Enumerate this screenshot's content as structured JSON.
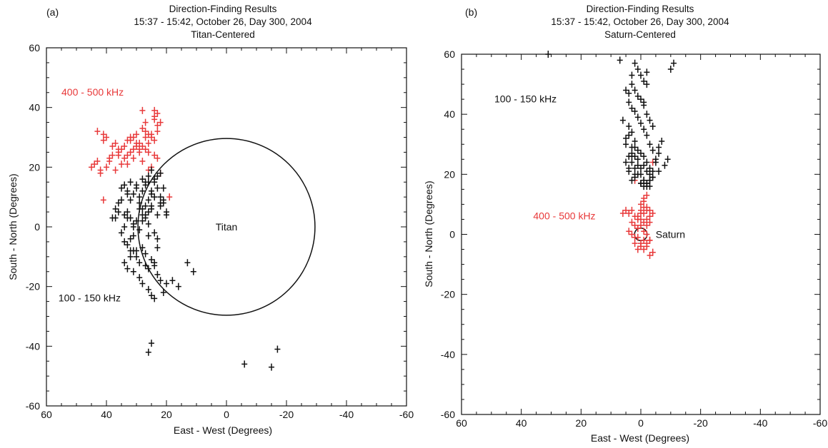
{
  "chart_data": [
    {
      "type": "scatter",
      "panel_label": "(a)",
      "title": "Direction-Finding Results",
      "subtitle": "15:37 - 15:42, October 26, Day 300, 2004",
      "subtitle2": "Titan-Centered",
      "xlabel": "East - West (Degrees)",
      "ylabel": "South - North (Degrees)",
      "xlim": [
        60,
        -60
      ],
      "ylim": [
        -60,
        60
      ],
      "xticks": [
        "60",
        "40",
        "20",
        "0",
        "-20",
        "-40",
        "-60"
      ],
      "yticks": [
        "-60",
        "-40",
        "-20",
        "0",
        "20",
        "40",
        "60"
      ],
      "body": {
        "name": "Titan",
        "center": [
          0,
          0
        ],
        "radius": 29.5
      },
      "annotations": [
        {
          "text": "400 - 500 kHz",
          "color": "#e8393a",
          "x": 55,
          "y": 44
        },
        {
          "text": "100 - 150 kHz",
          "color": "#111111",
          "x": 56,
          "y": -25
        }
      ],
      "series": [
        {
          "color": "#e8393a",
          "x": [
            45,
            44,
            43,
            42,
            43,
            41,
            40,
            41,
            39,
            38,
            37,
            36,
            35,
            34,
            33,
            32,
            31,
            30,
            29,
            28,
            27,
            26,
            25,
            24,
            23,
            28,
            27,
            24,
            23,
            36,
            34,
            33,
            31,
            30,
            29,
            28,
            27,
            26,
            25,
            24,
            23,
            22,
            35,
            32,
            30,
            28,
            26,
            24,
            38,
            36,
            40,
            37,
            42,
            39,
            33,
            31,
            29,
            27,
            25,
            23,
            41,
            32,
            22,
            19,
            24,
            26
          ],
          "y": [
            20,
            21,
            22,
            18,
            32,
            29,
            30,
            31,
            23,
            27,
            28,
            24,
            26,
            27,
            29,
            25,
            30,
            28,
            26,
            27,
            30,
            28,
            31,
            29,
            34,
            39,
            35,
            37,
            38,
            25,
            23,
            24,
            26,
            27,
            28,
            33,
            32,
            25,
            30,
            36,
            23,
            18,
            21,
            29,
            31,
            22,
            19,
            24,
            24,
            26,
            20,
            19,
            19,
            22,
            21,
            23,
            25,
            26,
            20,
            32,
            9,
            30,
            35,
            10,
            39,
            31
          ]
        },
        {
          "color": "#111111",
          "x": [
            35,
            34,
            33,
            32,
            31,
            30,
            29,
            28,
            27,
            26,
            25,
            24,
            23,
            22,
            21,
            36,
            37,
            38,
            35,
            34,
            33,
            32,
            31,
            30,
            29,
            28,
            27,
            26,
            25,
            24,
            23,
            22,
            21,
            20,
            34,
            33,
            32,
            31,
            30,
            29,
            28,
            27,
            26,
            25,
            24,
            33,
            32,
            31,
            30,
            29,
            28,
            27,
            26,
            34,
            35,
            36,
            37,
            33,
            32,
            31,
            29,
            28,
            27,
            26,
            25,
            24,
            23,
            22,
            21,
            20,
            30,
            28,
            27,
            26,
            25,
            24,
            23,
            22,
            29,
            31,
            32,
            33,
            34,
            28,
            27,
            26,
            25,
            24,
            23,
            22,
            21,
            20,
            18,
            13,
            11,
            16,
            26,
            25,
            24,
            23,
            25,
            26,
            -6,
            -15,
            -17
          ],
          "y": [
            13,
            14,
            12,
            15,
            11,
            13,
            10,
            12,
            14,
            9,
            11,
            15,
            13,
            10,
            8,
            8,
            6,
            3,
            -2,
            -5,
            -6,
            -4,
            -8,
            -10,
            -12,
            -7,
            -9,
            -14,
            -11,
            -13,
            -16,
            -18,
            -22,
            -19,
            -12,
            -14,
            -10,
            -15,
            -8,
            -17,
            -19,
            -13,
            -21,
            -23,
            -24,
            5,
            3,
            1,
            2,
            6,
            4,
            7,
            5,
            4,
            9,
            5,
            3,
            11,
            9,
            0,
            8,
            6,
            3,
            1,
            7,
            16,
            17,
            18,
            13,
            5,
            14,
            16,
            15,
            17,
            12,
            10,
            4,
            7,
            -1,
            -3,
            -8,
            3,
            0,
            2,
            4,
            -3,
            6,
            -2,
            -7,
            8,
            9,
            4,
            -18,
            -12,
            -15,
            -20,
            -42,
            -39,
            -12,
            -4,
            19,
            15,
            -46,
            -47,
            -41
          ]
        }
      ]
    },
    {
      "type": "scatter",
      "panel_label": "(b)",
      "title": "Direction-Finding Results",
      "subtitle": "15:37 - 15:42, October 26, Day 300, 2004",
      "subtitle2": "Saturn-Centered",
      "xlabel": "East - West (Degrees)",
      "ylabel": "South - North (Degrees)",
      "xlim": [
        60,
        -60
      ],
      "ylim": [
        -60,
        60
      ],
      "xticks": [
        "60",
        "40",
        "20",
        "0",
        "-20",
        "-40",
        "-60"
      ],
      "yticks": [
        "-60",
        "-40",
        "-20",
        "0",
        "20",
        "40",
        "60"
      ],
      "body": {
        "name": "Saturn",
        "center": [
          0,
          0
        ],
        "radius": 2.1
      },
      "annotations": [
        {
          "text": "100 - 150 kHz",
          "color": "#111111",
          "x": 49,
          "y": 44
        },
        {
          "text": "400 - 500 kHz",
          "color": "#e8393a",
          "x": 36,
          "y": 5
        }
      ],
      "series": [
        {
          "color": "#e8393a",
          "x": [
            4,
            3,
            2,
            1,
            0,
            -1,
            -2,
            -3,
            3,
            2,
            1,
            0,
            -1,
            -2,
            4,
            3,
            2,
            1,
            0,
            -1,
            -2,
            -3,
            2,
            1,
            0,
            -1,
            -2,
            -3,
            -4,
            1,
            0,
            -1,
            -2,
            -3,
            -4,
            0,
            -1,
            -2,
            -3,
            -4,
            -1,
            -2,
            1,
            0,
            -1,
            -2,
            -3,
            5,
            6,
            2,
            -4
          ],
          "y": [
            7,
            8,
            6,
            5,
            7,
            9,
            8,
            6,
            4,
            3,
            2,
            5,
            4,
            3,
            1,
            0,
            -1,
            2,
            3,
            1,
            0,
            -2,
            -3,
            -1,
            -4,
            -5,
            -3,
            -2,
            -6,
            -5,
            -3,
            -2,
            -4,
            -7,
            -6,
            10,
            11,
            9,
            8,
            7,
            12,
            13,
            6,
            8,
            7,
            5,
            4,
            8,
            7,
            18,
            24
          ]
        },
        {
          "color": "#111111",
          "x": [
            6,
            5,
            4,
            3,
            2,
            1,
            0,
            -1,
            -2,
            -3,
            4,
            3,
            2,
            1,
            0,
            -1,
            -2,
            -3,
            -4,
            5,
            4,
            3,
            2,
            1,
            0,
            -1,
            -2,
            -3,
            -5,
            4,
            3,
            2,
            1,
            0,
            -1,
            -2,
            -3,
            -4,
            -6,
            3,
            2,
            1,
            0,
            -1,
            -2,
            -3,
            -4,
            3,
            2,
            1,
            0,
            -1,
            -2,
            -3,
            -4,
            -5,
            -6,
            -7,
            2,
            1,
            0,
            -1,
            -2,
            4,
            3,
            -2,
            -4,
            -6,
            -8,
            -9,
            -10,
            -11,
            7,
            3,
            -2,
            31,
            5,
            4,
            2,
            0,
            -1,
            -3,
            5,
            3,
            4,
            2,
            -1
          ],
          "y": [
            38,
            30,
            33,
            27,
            29,
            25,
            22,
            26,
            24,
            20,
            36,
            34,
            31,
            28,
            27,
            23,
            21,
            18,
            19,
            32,
            26,
            24,
            22,
            20,
            17,
            18,
            16,
            22,
            25,
            44,
            42,
            41,
            39,
            37,
            35,
            33,
            30,
            28,
            29,
            50,
            48,
            46,
            45,
            43,
            40,
            38,
            36,
            29,
            26,
            23,
            20,
            18,
            17,
            16,
            21,
            24,
            27,
            31,
            57,
            55,
            53,
            51,
            50,
            22,
            18,
            17,
            19,
            21,
            23,
            25,
            55,
            57,
            58,
            53,
            54,
            60,
            48,
            47,
            19,
            17,
            16,
            18,
            24,
            26,
            21,
            20,
            44
          ]
        }
      ]
    }
  ]
}
